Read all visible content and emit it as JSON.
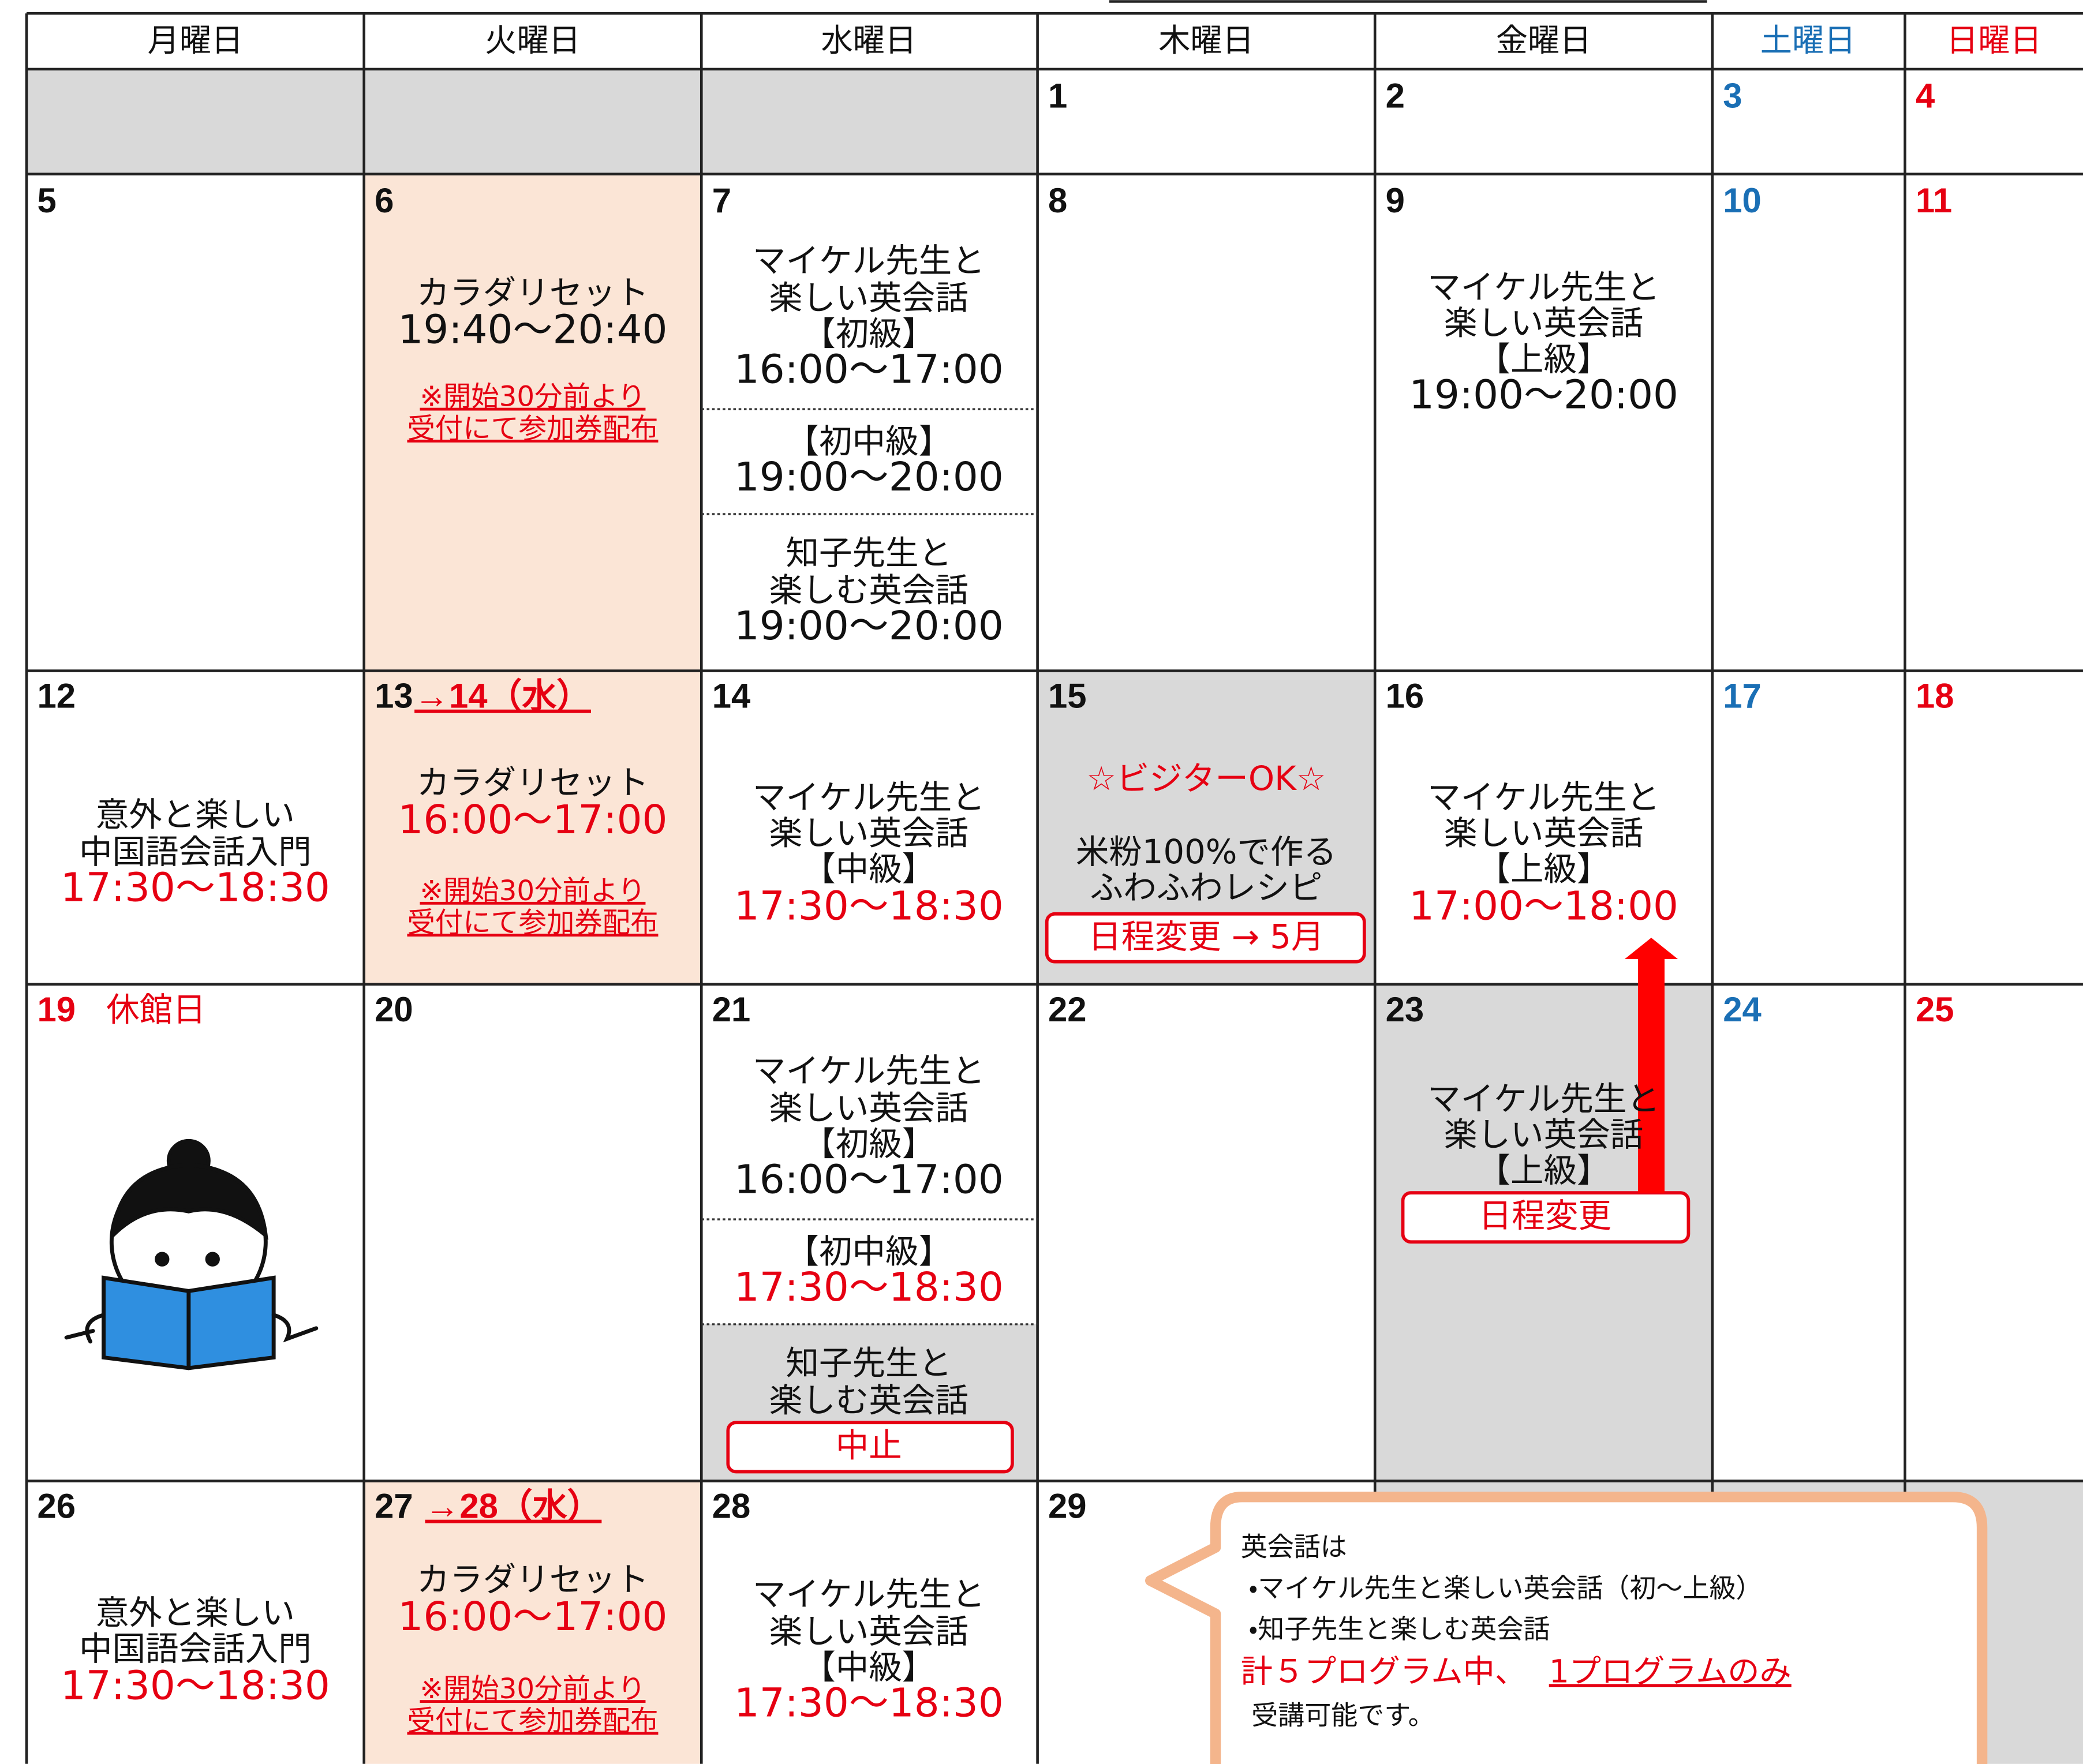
{
  "weekdays": [
    "月曜日",
    "火曜日",
    "水曜日",
    "木曜日",
    "金曜日",
    "土曜日",
    "日曜日"
  ],
  "weeks": [
    [
      {
        "day": "1"
      },
      {
        "day": "2"
      },
      {
        "day": "3"
      },
      {
        "day": "4"
      }
    ],
    [
      {
        "day": "5"
      },
      {
        "day": "6",
        "lines": [
          "カラダリセット",
          "19:40～20:40"
        ],
        "note": [
          "※開始30分前より",
          "受付にて参加券配布"
        ]
      },
      {
        "day": "7",
        "lines": [
          "マイケル先生と",
          "楽しい英会話",
          "【初級】",
          "16:00～17:00",
          "【初中級】",
          "19:00～20:00",
          "知子先生と",
          "楽しむ英会話",
          "19:00～20:00"
        ]
      },
      {
        "day": "8"
      },
      {
        "day": "9",
        "lines": [
          "マイケル先生と",
          "楽しい英会話",
          "【上級】",
          "19:00～20:00"
        ]
      },
      {
        "day": "10"
      },
      {
        "day": "11"
      }
    ],
    [
      {
        "day": "12",
        "lines": [
          "意外と楽しい",
          "中国語会話入門",
          "17:30～18:30"
        ]
      },
      {
        "day": "13",
        "moved": "→14（水）",
        "lines": [
          "カラダリセット",
          "16:00～17:00"
        ],
        "note": [
          "※開始30分前より",
          "受付にて参加券配布"
        ]
      },
      {
        "day": "14",
        "lines": [
          "マイケル先生と",
          "楽しい英会話",
          "【中級】",
          "17:30～18:30"
        ]
      },
      {
        "day": "15",
        "lines": [
          "☆ビジターOK☆",
          "米粉100%で作る",
          "ふわふわレシピ"
        ],
        "badge": "日程変更 → 5月"
      },
      {
        "day": "16",
        "lines": [
          "マイケル先生と",
          "楽しい英会話",
          "【上級】",
          "17:00～18:00"
        ]
      },
      {
        "day": "17"
      },
      {
        "day": "18"
      }
    ],
    [
      {
        "day": "19",
        "closed": "休館日"
      },
      {
        "day": "20"
      },
      {
        "day": "21",
        "lines": [
          "マイケル先生と",
          "楽しい英会話",
          "【初級】",
          "16:00～17:00",
          "【初中級】",
          "17:30～18:30",
          "知子先生と",
          "楽しむ英会話"
        ],
        "badge": "中止"
      },
      {
        "day": "22"
      },
      {
        "day": "23",
        "lines": [
          "マイケル先生と",
          "楽しい英会話",
          "【上級】"
        ],
        "badge": "日程変更"
      },
      {
        "day": "24"
      },
      {
        "day": "25"
      }
    ],
    [
      {
        "day": "26",
        "lines": [
          "意外と楽しい",
          "中国語会話入門",
          "17:30～18:30"
        ]
      },
      {
        "day": "27",
        "moved": "→28（水）",
        "lines": [
          "カラダリセット",
          "16:00～17:00"
        ],
        "note": [
          "※開始30分前より",
          "受付にて参加券配布"
        ]
      },
      {
        "day": "28",
        "lines": [
          "マイケル先生と",
          "楽しい英会話",
          "【中級】",
          "17:30～18:30"
        ]
      },
      {
        "day": "29"
      }
    ]
  ],
  "notice": {
    "lines": [
      "英会話は",
      "・マイケル先生と楽しい英会話（初～上級）",
      "・知子先生と楽しむ英会話"
    ],
    "emphasis": "計５プログラム中、",
    "emphasis_link": "1プログラムのみ",
    "closing": "受講可能です。"
  }
}
